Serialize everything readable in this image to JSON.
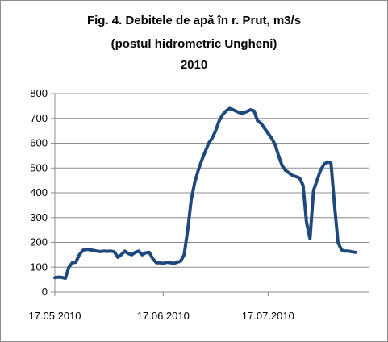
{
  "chart_data": {
    "type": "line",
    "title_lines": [
      "Fig. 4. Debitele de apă în r. Prut, m3/s",
      "(postul hidrometric Ungheni)",
      "2010"
    ],
    "xlabel": "",
    "ylabel": "",
    "ylim": [
      0,
      800
    ],
    "yticks": [
      0,
      100,
      200,
      300,
      400,
      500,
      600,
      700,
      800
    ],
    "grid": "horizontal",
    "legend": "none",
    "line_color": "#1f497d",
    "x_tick_labels": [
      {
        "day": 0,
        "label": "17.05.2010"
      },
      {
        "day": 31,
        "label": "17.06.2010"
      },
      {
        "day": 61,
        "label": "17.07.2010"
      }
    ],
    "x_range_days": [
      0,
      90
    ],
    "series": [
      {
        "points": [
          [
            0,
            58
          ],
          [
            1,
            60
          ],
          [
            2,
            59
          ],
          [
            3,
            55
          ],
          [
            4,
            100
          ],
          [
            5,
            118
          ],
          [
            6,
            120
          ],
          [
            7,
            150
          ],
          [
            8,
            168
          ],
          [
            9,
            172
          ],
          [
            10,
            170
          ],
          [
            11,
            168
          ],
          [
            12,
            165
          ],
          [
            13,
            163
          ],
          [
            14,
            165
          ],
          [
            15,
            164
          ],
          [
            16,
            165
          ],
          [
            17,
            162
          ],
          [
            18,
            140
          ],
          [
            19,
            150
          ],
          [
            20,
            165
          ],
          [
            21,
            155
          ],
          [
            22,
            150
          ],
          [
            23,
            160
          ],
          [
            24,
            165
          ],
          [
            25,
            150
          ],
          [
            26,
            158
          ],
          [
            27,
            160
          ],
          [
            28,
            135
          ],
          [
            29,
            118
          ],
          [
            30,
            118
          ],
          [
            31,
            115
          ],
          [
            32,
            120
          ],
          [
            33,
            118
          ],
          [
            34,
            115
          ],
          [
            35,
            120
          ],
          [
            36,
            125
          ],
          [
            37,
            150
          ],
          [
            38,
            250
          ],
          [
            39,
            370
          ],
          [
            40,
            440
          ],
          [
            41,
            490
          ],
          [
            42,
            530
          ],
          [
            43,
            565
          ],
          [
            44,
            600
          ],
          [
            45,
            620
          ],
          [
            46,
            650
          ],
          [
            47,
            690
          ],
          [
            48,
            715
          ],
          [
            49,
            730
          ],
          [
            50,
            740
          ],
          [
            51,
            735
          ],
          [
            52,
            728
          ],
          [
            53,
            722
          ],
          [
            54,
            722
          ],
          [
            55,
            728
          ],
          [
            56,
            735
          ],
          [
            57,
            730
          ],
          [
            58,
            690
          ],
          [
            59,
            680
          ],
          [
            60,
            660
          ],
          [
            61,
            640
          ],
          [
            62,
            620
          ],
          [
            63,
            595
          ],
          [
            64,
            550
          ],
          [
            65,
            510
          ],
          [
            66,
            490
          ],
          [
            67,
            480
          ],
          [
            68,
            470
          ],
          [
            69,
            465
          ],
          [
            70,
            460
          ],
          [
            71,
            430
          ],
          [
            72,
            280
          ],
          [
            73,
            215
          ],
          [
            74,
            410
          ],
          [
            75,
            450
          ],
          [
            76,
            490
          ],
          [
            77,
            515
          ],
          [
            78,
            525
          ],
          [
            79,
            520
          ],
          [
            80,
            350
          ],
          [
            81,
            200
          ],
          [
            82,
            170
          ],
          [
            83,
            165
          ],
          [
            84,
            165
          ],
          [
            85,
            162
          ],
          [
            86,
            160
          ]
        ]
      }
    ]
  }
}
